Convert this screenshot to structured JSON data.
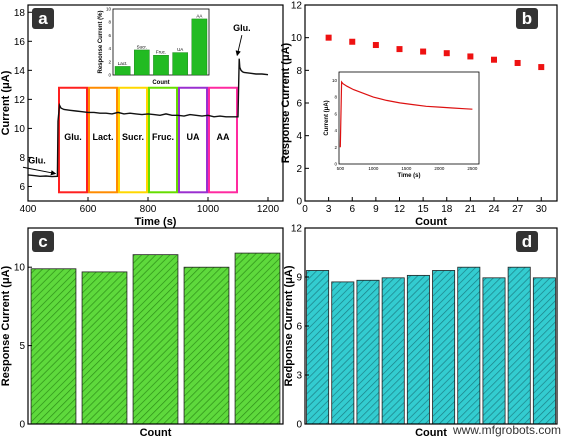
{
  "watermark": "www.mfgrobots.com",
  "chart_data": [
    {
      "panel": "a",
      "type": "line",
      "xlabel": "Time (s)",
      "ylabel": "Current (μA)",
      "xlim": [
        400,
        1250
      ],
      "ylim": [
        5,
        18.5
      ],
      "xticks": [
        400,
        600,
        800,
        1000,
        1200
      ],
      "yticks": [
        6,
        8,
        10,
        12,
        14,
        16,
        18
      ],
      "series": [
        {
          "x": [
            400,
            420,
            440,
            460,
            480,
            498,
            500,
            505,
            510,
            520,
            540,
            560,
            580,
            600,
            620,
            640,
            660,
            680,
            700,
            720,
            740,
            760,
            780,
            800,
            820,
            840,
            860,
            880,
            900,
            920,
            940,
            960,
            980,
            1000,
            1020,
            1040,
            1060,
            1080,
            1100,
            1104,
            1106,
            1110,
            1115,
            1120,
            1140,
            1160,
            1180,
            1200
          ],
          "y": [
            6.8,
            6.75,
            6.7,
            6.72,
            6.68,
            6.7,
            10.5,
            11.6,
            11.4,
            11.3,
            11.25,
            11.2,
            11.15,
            11.1,
            11.1,
            11.05,
            11.05,
            11.0,
            11.1,
            11.0,
            11.05,
            11.0,
            10.95,
            11.0,
            10.95,
            10.9,
            11.0,
            10.9,
            10.9,
            10.85,
            10.95,
            10.9,
            10.85,
            10.9,
            10.8,
            10.85,
            10.8,
            10.8,
            10.8,
            14.8,
            14.2,
            14.0,
            13.9,
            13.85,
            13.8,
            13.75,
            13.75,
            13.7
          ]
        }
      ],
      "annotations": [
        {
          "text": "Glu.",
          "x": 430,
          "y": 7.6,
          "arrow_to": [
            498,
            6.75
          ]
        },
        {
          "text": "Glu.",
          "x": 1113,
          "y": 16.7,
          "arrow_to": [
            1104,
            14.9
          ]
        }
      ],
      "interval_boxes": [
        {
          "label": "Glu.",
          "x0": 500,
          "x1": 600,
          "color": "#ff2020"
        },
        {
          "label": "Lact.",
          "x0": 600,
          "x1": 700,
          "color": "#ff8c00"
        },
        {
          "label": "Sucr.",
          "x0": 700,
          "x1": 800,
          "color": "#ffd800"
        },
        {
          "label": "Fruc.",
          "x0": 800,
          "x1": 900,
          "color": "#66dd00"
        },
        {
          "label": "UA",
          "x0": 900,
          "x1": 1000,
          "color": "#9a2fd0"
        },
        {
          "label": "AA",
          "x0": 1000,
          "x1": 1100,
          "color": "#ff2aa0"
        }
      ],
      "box_y_range": [
        5.6,
        12.8
      ],
      "inset": {
        "type": "bar",
        "xlabel": "Count",
        "ylabel": "Response Current (%)",
        "categories": [
          "Lact.",
          "Sucr.",
          "Fruc.",
          "UA",
          "AA"
        ],
        "values": [
          1.3,
          3.8,
          3.0,
          3.4,
          8.5
        ],
        "ylim": [
          0,
          10
        ],
        "yticks": [
          0,
          2,
          4,
          6,
          8,
          10
        ],
        "color": "#22bb22"
      }
    },
    {
      "panel": "b",
      "type": "scatter",
      "xlabel": "Count",
      "ylabel": "Response Current (μA)",
      "xlim": [
        0,
        32
      ],
      "ylim": [
        0,
        12
      ],
      "xticks": [
        0,
        3,
        6,
        9,
        12,
        15,
        18,
        21,
        24,
        27,
        30
      ],
      "yticks": [
        0,
        2,
        4,
        6,
        8,
        10,
        12
      ],
      "series": [
        {
          "x": [
            3,
            6,
            9,
            12,
            15,
            18,
            21,
            24,
            27,
            30
          ],
          "y": [
            10.0,
            9.75,
            9.55,
            9.3,
            9.15,
            9.05,
            8.85,
            8.65,
            8.45,
            8.2
          ],
          "color": "#ee1111"
        }
      ],
      "inset": {
        "type": "line",
        "xlabel": "Time (s)",
        "ylabel": "Current (μA)",
        "xlim": [
          480,
          2600
        ],
        "ylim": [
          0,
          11
        ],
        "xticks": [
          500,
          1000,
          1500,
          2000,
          2500
        ],
        "yticks": [
          0,
          2,
          4,
          6,
          8,
          10
        ],
        "x": [
          500,
          520,
          540,
          600,
          700,
          800,
          900,
          1000,
          1200,
          1400,
          1600,
          1800,
          2000,
          2200,
          2400,
          2500
        ],
        "y": [
          2,
          9.8,
          9.6,
          9.3,
          8.9,
          8.6,
          8.3,
          8.0,
          7.6,
          7.3,
          7.1,
          6.9,
          6.8,
          6.7,
          6.6,
          6.55
        ],
        "color": "#dd1111"
      }
    },
    {
      "panel": "c",
      "type": "bar",
      "xlabel": "Count",
      "ylabel": "Response Current (μA)",
      "ylim": [
        0,
        12.5
      ],
      "yticks": [
        0,
        5,
        10
      ],
      "values": [
        9.9,
        9.7,
        10.8,
        10.0,
        10.9
      ],
      "color": "#5ed93c",
      "hatch": "diagonal"
    },
    {
      "panel": "d",
      "type": "bar",
      "xlabel": "Count",
      "ylabel": "Redponse Current (μA)",
      "ylim": [
        0,
        12
      ],
      "yticks": [
        0,
        3,
        6,
        9,
        12
      ],
      "values": [
        9.4,
        8.7,
        8.8,
        8.95,
        9.1,
        9.4,
        9.6,
        8.95,
        9.6,
        8.95
      ],
      "color": "#33ccd0",
      "hatch": "diagonal"
    }
  ]
}
